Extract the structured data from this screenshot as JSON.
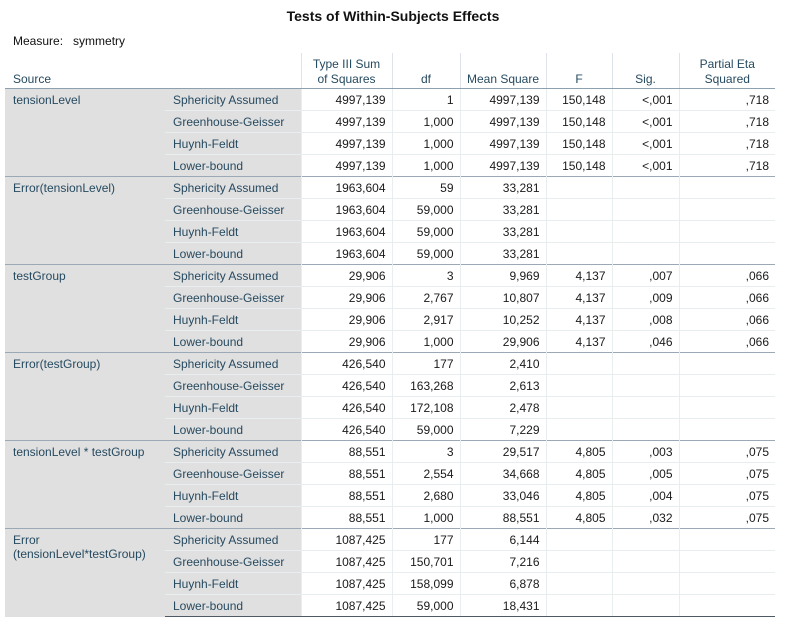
{
  "title": "Tests of Within-Subjects Effects",
  "measure": {
    "label": "Measure:",
    "value": "symmetry"
  },
  "columns": [
    "Source",
    "Type III Sum of Squares",
    "df",
    "Mean Square",
    "F",
    "Sig.",
    "Partial Eta Squared"
  ],
  "groups": [
    {
      "source": "tensionLevel",
      "rows": [
        [
          "Sphericity Assumed",
          "4997,139",
          "1",
          "4997,139",
          "150,148",
          "<,001",
          ",718"
        ],
        [
          "Greenhouse-Geisser",
          "4997,139",
          "1,000",
          "4997,139",
          "150,148",
          "<,001",
          ",718"
        ],
        [
          "Huynh-Feldt",
          "4997,139",
          "1,000",
          "4997,139",
          "150,148",
          "<,001",
          ",718"
        ],
        [
          "Lower-bound",
          "4997,139",
          "1,000",
          "4997,139",
          "150,148",
          "<,001",
          ",718"
        ]
      ]
    },
    {
      "source": "Error(tensionLevel)",
      "rows": [
        [
          "Sphericity Assumed",
          "1963,604",
          "59",
          "33,281",
          "",
          "",
          ""
        ],
        [
          "Greenhouse-Geisser",
          "1963,604",
          "59,000",
          "33,281",
          "",
          "",
          ""
        ],
        [
          "Huynh-Feldt",
          "1963,604",
          "59,000",
          "33,281",
          "",
          "",
          ""
        ],
        [
          "Lower-bound",
          "1963,604",
          "59,000",
          "33,281",
          "",
          "",
          ""
        ]
      ]
    },
    {
      "source": "testGroup",
      "rows": [
        [
          "Sphericity Assumed",
          "29,906",
          "3",
          "9,969",
          "4,137",
          ",007",
          ",066"
        ],
        [
          "Greenhouse-Geisser",
          "29,906",
          "2,767",
          "10,807",
          "4,137",
          ",009",
          ",066"
        ],
        [
          "Huynh-Feldt",
          "29,906",
          "2,917",
          "10,252",
          "4,137",
          ",008",
          ",066"
        ],
        [
          "Lower-bound",
          "29,906",
          "1,000",
          "29,906",
          "4,137",
          ",046",
          ",066"
        ]
      ]
    },
    {
      "source": "Error(testGroup)",
      "rows": [
        [
          "Sphericity Assumed",
          "426,540",
          "177",
          "2,410",
          "",
          "",
          ""
        ],
        [
          "Greenhouse-Geisser",
          "426,540",
          "163,268",
          "2,613",
          "",
          "",
          ""
        ],
        [
          "Huynh-Feldt",
          "426,540",
          "172,108",
          "2,478",
          "",
          "",
          ""
        ],
        [
          "Lower-bound",
          "426,540",
          "59,000",
          "7,229",
          "",
          "",
          ""
        ]
      ]
    },
    {
      "source": "tensionLevel * testGroup",
      "rows": [
        [
          "Sphericity Assumed",
          "88,551",
          "3",
          "29,517",
          "4,805",
          ",003",
          ",075"
        ],
        [
          "Greenhouse-Geisser",
          "88,551",
          "2,554",
          "34,668",
          "4,805",
          ",005",
          ",075"
        ],
        [
          "Huynh-Feldt",
          "88,551",
          "2,680",
          "33,046",
          "4,805",
          ",004",
          ",075"
        ],
        [
          "Lower-bound",
          "88,551",
          "1,000",
          "88,551",
          "4,805",
          ",032",
          ",075"
        ]
      ]
    },
    {
      "source": "Error (tensionLevel*testGroup)",
      "rows": [
        [
          "Sphericity Assumed",
          "1087,425",
          "177",
          "6,144",
          "",
          "",
          ""
        ],
        [
          "Greenhouse-Geisser",
          "1087,425",
          "150,701",
          "7,216",
          "",
          "",
          ""
        ],
        [
          "Huynh-Feldt",
          "1087,425",
          "158,099",
          "6,878",
          "",
          "",
          ""
        ],
        [
          "Lower-bound",
          "1087,425",
          "59,000",
          "18,431",
          "",
          "",
          ""
        ]
      ]
    }
  ]
}
